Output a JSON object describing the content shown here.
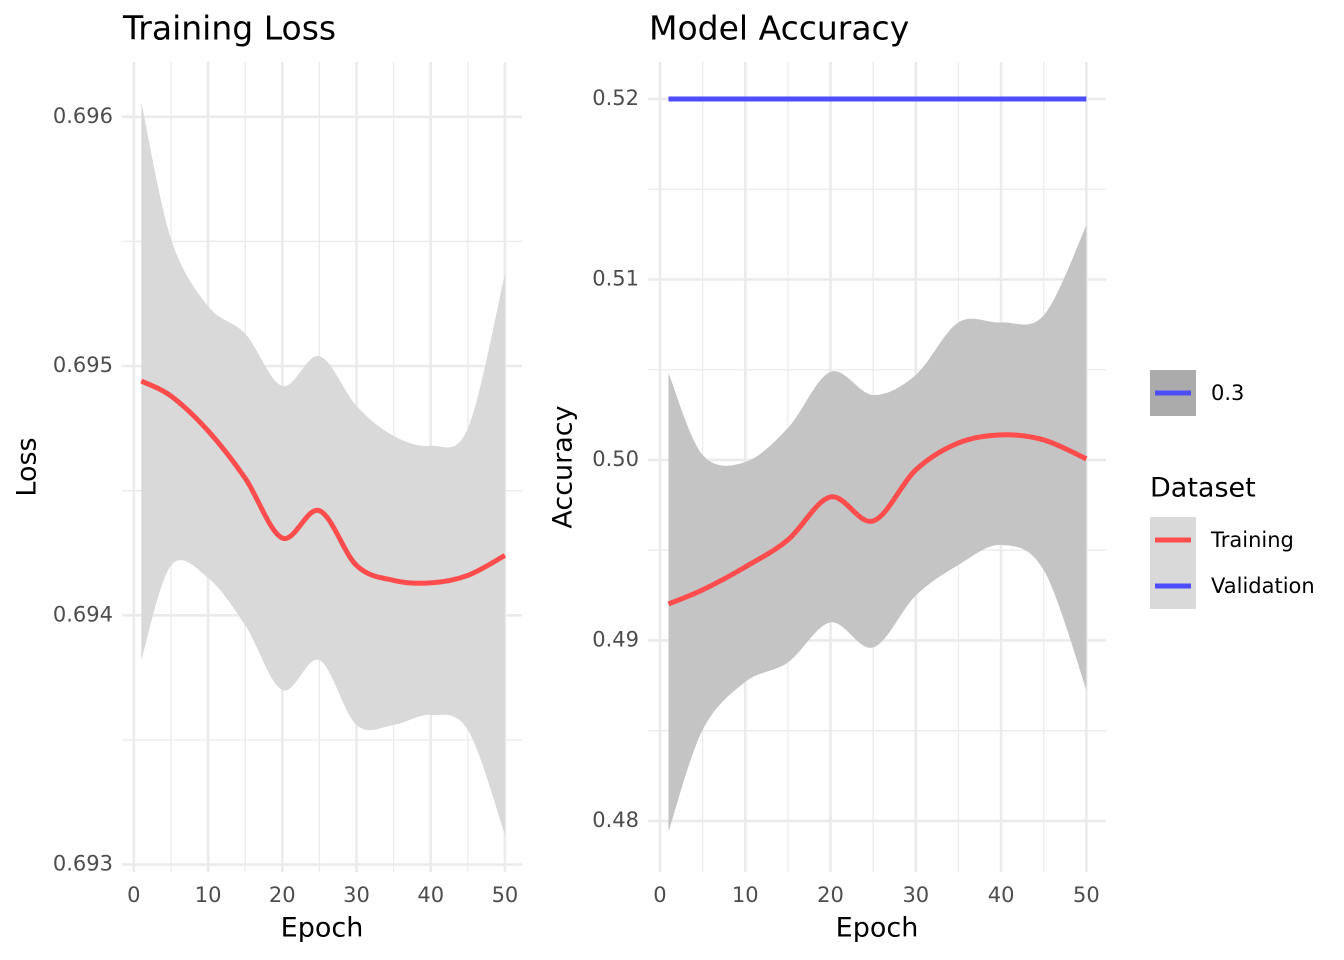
{
  "chart_data": [
    {
      "type": "line",
      "title": "Training Loss",
      "x_label": "Epoch",
      "y_label": "Loss",
      "x": [
        1,
        5,
        10,
        15,
        20,
        25,
        30,
        35,
        40,
        45,
        50
      ],
      "series": [
        {
          "name": "Training",
          "color": "#ff4d4d",
          "values": [
            0.69494,
            0.69488,
            0.69474,
            0.69455,
            0.69431,
            0.69442,
            0.6942,
            0.69414,
            0.69413,
            0.69416,
            0.69424
          ],
          "upper": [
            0.69606,
            0.69551,
            0.69524,
            0.69513,
            0.69492,
            0.69504,
            0.69484,
            0.69472,
            0.69468,
            0.69475,
            0.69537
          ],
          "lower": [
            0.69382,
            0.6942,
            0.69415,
            0.69396,
            0.6937,
            0.69382,
            0.69356,
            0.69356,
            0.6936,
            0.69354,
            0.69312
          ]
        }
      ],
      "band_color": "#d9d9d9",
      "xlim": [
        -1.6,
        52.3
      ],
      "xticks": [
        0,
        10,
        20,
        30,
        40,
        50
      ],
      "ylim": [
        0.69297,
        0.69622
      ],
      "yticks": [
        0.693,
        0.694,
        0.695,
        0.696
      ],
      "grid": true
    },
    {
      "type": "line",
      "title": "Model Accuracy",
      "x_label": "Epoch",
      "y_label": "Accuracy",
      "x": [
        1,
        5,
        10,
        15,
        20,
        25,
        30,
        35,
        40,
        45,
        50
      ],
      "series": [
        {
          "name": "Training",
          "color": "#ff4d4d",
          "values": [
            0.49202,
            0.4928,
            0.49407,
            0.49557,
            0.49795,
            0.49662,
            0.49945,
            0.50094,
            0.50139,
            0.50111,
            0.50006
          ],
          "upper": [
            0.50482,
            0.50028,
            0.49989,
            0.50177,
            0.50488,
            0.5036,
            0.50471,
            0.50762,
            0.50762,
            0.50801,
            0.51299
          ],
          "lower": [
            0.47939,
            0.48504,
            0.4877,
            0.48878,
            0.491,
            0.48961,
            0.49249,
            0.49418,
            0.49529,
            0.4939,
            0.48726
          ]
        },
        {
          "name": "Validation",
          "color": "#4d4dff",
          "values": [
            0.52,
            0.52,
            0.52,
            0.52,
            0.52,
            0.52,
            0.52,
            0.52,
            0.52,
            0.52,
            0.52
          ]
        }
      ],
      "band_color": "#c4c4c4",
      "xlim": [
        -1.4,
        52.3
      ],
      "xticks": [
        0,
        10,
        20,
        30,
        40,
        50
      ],
      "ylim": [
        0.47717,
        0.52205
      ],
      "yticks": [
        0.48,
        0.49,
        {
          "value": 0.5,
          "label": "0.50"
        },
        0.51,
        0.52
      ],
      "grid": true
    }
  ],
  "legend": {
    "band_key": "0.3",
    "title": "Dataset"
  }
}
